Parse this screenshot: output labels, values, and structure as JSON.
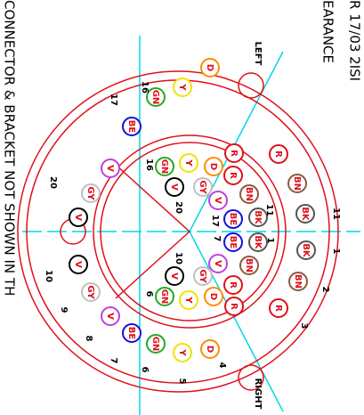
{
  "header": {
    "lines": [
      "R 17/03 2ISI",
      "EARANCE"
    ]
  },
  "footer": "CONNECTOR & BRACKET NOT SHOWN IN TH",
  "sides": {
    "left": "LEFT",
    "right": "RIGHT"
  },
  "pins": [
    {
      "label": "R",
      "color": "#e0101a"
    },
    {
      "label": "BN",
      "color": "#8b5a3c"
    },
    {
      "label": "BK",
      "color": "#555555"
    },
    {
      "label": "BK",
      "color": "#555555"
    },
    {
      "label": "BN",
      "color": "#8b5a3c"
    },
    {
      "label": "R",
      "color": "#e0101a"
    },
    {
      "label": "D",
      "color": "#ff8c00"
    },
    {
      "label": "Y",
      "color": "#f5e000"
    },
    {
      "label": "GN",
      "color": "#22aa22"
    },
    {
      "label": "BE",
      "color": "#1010e0"
    },
    {
      "label": "V",
      "color": "#c040e0"
    },
    {
      "label": "GY",
      "color": "#c0c0c0"
    },
    {
      "label": "V",
      "color": "#000000"
    },
    {
      "label": "V",
      "color": "#000000"
    },
    {
      "label": "GY",
      "color": "#c0c0c0"
    },
    {
      "label": "V",
      "color": "#c040e0"
    },
    {
      "label": "BE",
      "color": "#1010e0"
    },
    {
      "label": "GN",
      "color": "#22aa22"
    },
    {
      "label": "Y",
      "color": "#f5e000"
    },
    {
      "label": "D",
      "color": "#ff8c00"
    },
    {
      "label": "R",
      "color": "#e0101a"
    },
    {
      "label": "R",
      "color": "#e0101a"
    },
    {
      "label": "BN",
      "color": "#8b5a3c"
    },
    {
      "label": "BK",
      "color": "#555555"
    },
    {
      "label": "BK",
      "color": "#555555"
    },
    {
      "label": "BN",
      "color": "#8b5a3c"
    },
    {
      "label": "R",
      "color": "#e0101a"
    },
    {
      "label": "R",
      "color": "#e0101a"
    },
    {
      "label": "V",
      "color": "#c040e0"
    },
    {
      "label": "BE",
      "color": "#1010e0"
    },
    {
      "label": "BE",
      "color": "#1010e0"
    },
    {
      "label": "V",
      "color": "#c040e0"
    },
    {
      "label": "GY",
      "color": "#c0c0c0"
    },
    {
      "label": "GY",
      "color": "#c0c0c0"
    },
    {
      "label": "V",
      "color": "#000000"
    },
    {
      "label": "V",
      "color": "#000000"
    },
    {
      "label": "D",
      "color": "#ff8c00"
    },
    {
      "label": "D",
      "color": "#ff8c00"
    },
    {
      "label": "Y",
      "color": "#f5e000"
    },
    {
      "label": "Y",
      "color": "#f5e000"
    },
    {
      "label": "GN",
      "color": "#22aa22"
    },
    {
      "label": "GN",
      "color": "#22aa22"
    }
  ],
  "numbers": [
    "11",
    "1",
    "2",
    "3",
    "4",
    "5",
    "6",
    "7",
    "8",
    "9",
    "10",
    "20",
    "17",
    "16",
    "11",
    "1",
    "17",
    "7",
    "16",
    "20",
    "10",
    "6"
  ]
}
